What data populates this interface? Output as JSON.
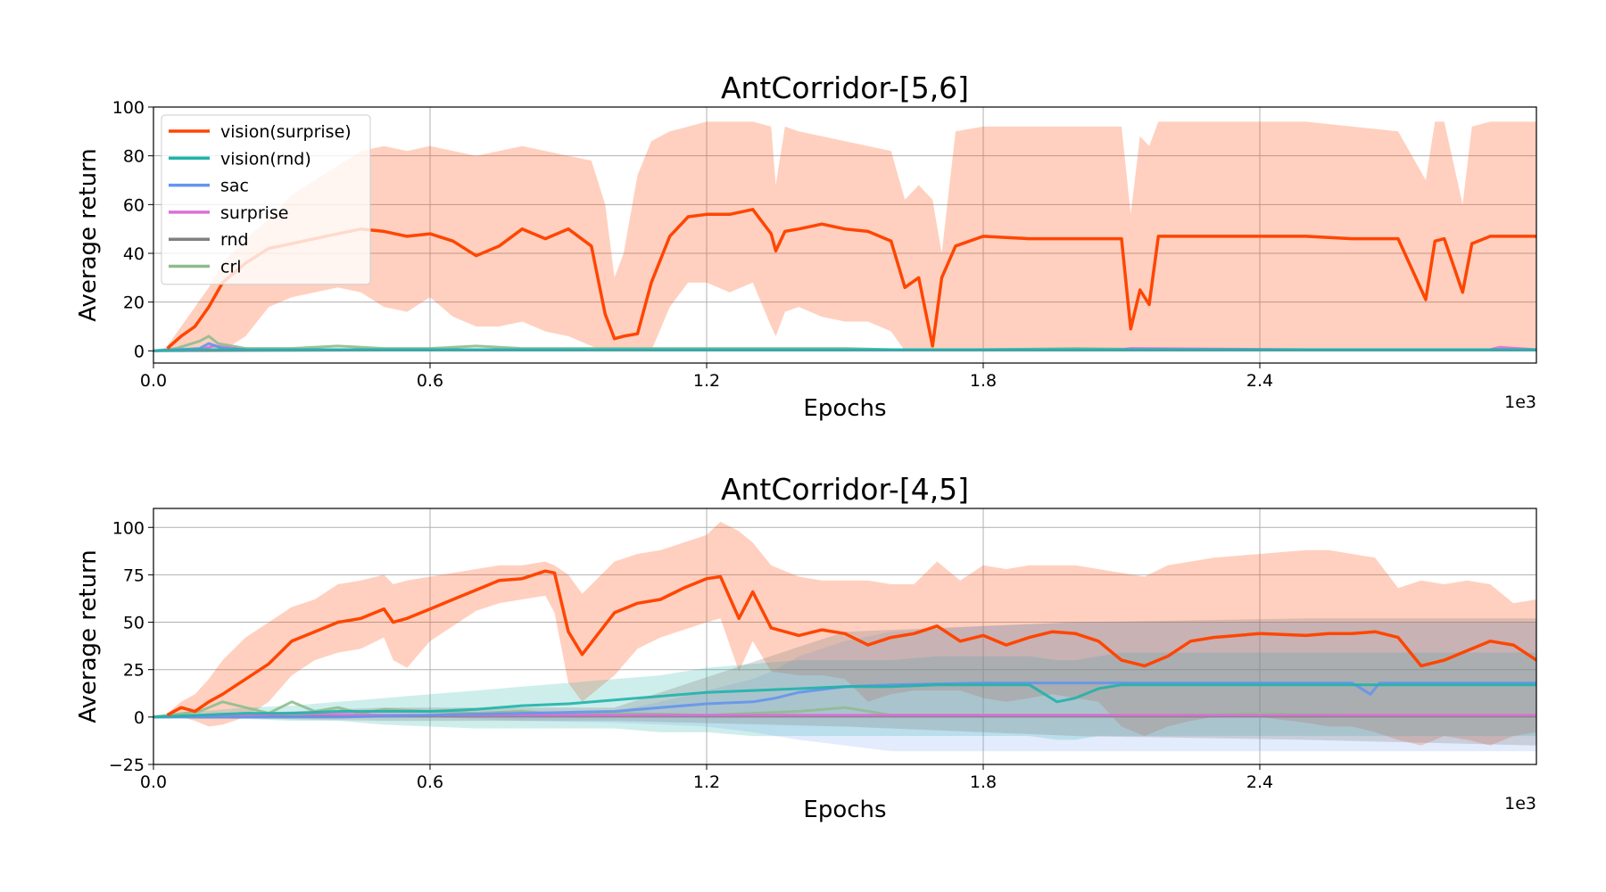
{
  "chart_data": [
    {
      "type": "line",
      "title": "AntCorridor-[5,6]",
      "xlabel": "Epochs",
      "ylabel": "Average return",
      "x_offset_text": "1e3",
      "xlim": [
        0,
        3.0
      ],
      "ylim": [
        -5,
        100
      ],
      "xticks": [
        0.0,
        0.6,
        1.2,
        1.8,
        2.4
      ],
      "xtick_labels": [
        "0.0",
        "0.6",
        "1.2",
        "1.8",
        "2.4"
      ],
      "yticks": [
        0,
        20,
        40,
        60,
        80,
        100
      ],
      "ytick_labels": [
        "0",
        "20",
        "40",
        "60",
        "80",
        "100"
      ],
      "grid": true,
      "legend": "upper-left",
      "series": [
        {
          "name": "vision(surprise)",
          "color": "#ff4500",
          "x": [
            0.03,
            0.06,
            0.09,
            0.12,
            0.15,
            0.2,
            0.25,
            0.3,
            0.35,
            0.4,
            0.45,
            0.5,
            0.55,
            0.6,
            0.65,
            0.7,
            0.75,
            0.8,
            0.85,
            0.9,
            0.95,
            0.98,
            1.0,
            1.02,
            1.05,
            1.08,
            1.12,
            1.16,
            1.2,
            1.25,
            1.3,
            1.34,
            1.35,
            1.37,
            1.4,
            1.45,
            1.5,
            1.55,
            1.6,
            1.63,
            1.66,
            1.69,
            1.71,
            1.74,
            1.8,
            1.9,
            2.0,
            2.1,
            2.12,
            2.14,
            2.16,
            2.18,
            2.2,
            2.3,
            2.4,
            2.5,
            2.6,
            2.7,
            2.76,
            2.78,
            2.8,
            2.84,
            2.86,
            2.9,
            3.0
          ],
          "y": [
            1,
            6,
            10,
            18,
            28,
            36,
            42,
            44,
            46,
            48,
            50,
            49,
            47,
            48,
            45,
            39,
            43,
            50,
            46,
            50,
            43,
            15,
            5,
            6,
            7,
            28,
            47,
            55,
            56,
            56,
            58,
            48,
            41,
            49,
            50,
            52,
            50,
            49,
            45,
            26,
            30,
            2,
            30,
            43,
            47,
            46,
            46,
            46,
            9,
            25,
            19,
            47,
            47,
            47,
            47,
            47,
            46,
            46,
            21,
            45,
            46,
            24,
            44,
            47,
            47
          ],
          "band_upper": [
            2,
            10,
            18,
            26,
            36,
            46,
            54,
            64,
            70,
            76,
            82,
            84,
            82,
            84,
            82,
            80,
            82,
            84,
            82,
            80,
            78,
            60,
            30,
            40,
            72,
            86,
            90,
            92,
            94,
            94,
            94,
            92,
            68,
            92,
            90,
            88,
            86,
            84,
            82,
            62,
            68,
            62,
            40,
            90,
            92,
            92,
            92,
            92,
            56,
            88,
            84,
            94,
            94,
            94,
            94,
            94,
            92,
            90,
            70,
            94,
            94,
            60,
            92,
            94,
            94
          ],
          "band_lower": [
            0,
            0,
            0,
            0,
            0,
            6,
            18,
            22,
            24,
            26,
            24,
            18,
            16,
            22,
            14,
            10,
            10,
            12,
            8,
            6,
            2,
            0,
            0,
            0,
            0,
            0,
            18,
            28,
            28,
            24,
            28,
            10,
            6,
            16,
            18,
            14,
            12,
            12,
            8,
            0,
            0,
            0,
            0,
            0,
            0,
            0,
            0,
            0,
            0,
            0,
            0,
            0,
            0,
            0,
            0,
            0,
            0,
            0,
            0,
            0,
            0,
            0,
            0,
            0,
            0
          ]
        },
        {
          "name": "vision(rnd)",
          "color": "#20b2aa",
          "x": [
            0.0,
            0.1,
            0.2,
            0.5,
            1.0,
            1.5,
            2.0,
            2.5,
            3.0
          ],
          "y": [
            0,
            0.5,
            0.5,
            0.5,
            0.5,
            0.5,
            0.5,
            0.5,
            0.5
          ]
        },
        {
          "name": "sac",
          "color": "#6495ed",
          "x": [
            0.0,
            0.1,
            0.12,
            0.15,
            0.2,
            0.5,
            1.0,
            1.5,
            2.0,
            2.5,
            3.0
          ],
          "y": [
            0,
            1,
            3,
            1,
            0.5,
            0.5,
            0.5,
            0.5,
            0.5,
            0.5,
            0.5
          ]
        },
        {
          "name": "surprise",
          "color": "#da70d6",
          "x": [
            0.0,
            0.1,
            0.13,
            0.2,
            0.5,
            1.0,
            1.5,
            2.0,
            2.1,
            2.12,
            2.5,
            2.9,
            2.92,
            3.0
          ],
          "y": [
            0,
            0.5,
            2,
            0.5,
            0.5,
            0.5,
            0.5,
            0.5,
            0.5,
            1,
            0.5,
            0.5,
            1.5,
            0.5
          ]
        },
        {
          "name": "rnd",
          "color": "#808080",
          "x": [
            0.0,
            0.5,
            1.0,
            1.5,
            2.0,
            2.5,
            3.0
          ],
          "y": [
            0,
            0.3,
            0.3,
            0.3,
            0.3,
            0.3,
            0.3
          ]
        },
        {
          "name": "crl",
          "color": "#8fbc8f",
          "x": [
            0.0,
            0.05,
            0.1,
            0.12,
            0.14,
            0.2,
            0.3,
            0.4,
            0.5,
            0.6,
            0.7,
            0.8,
            0.9,
            1.0,
            1.1,
            1.2,
            1.3,
            1.4,
            1.5,
            1.6,
            1.8,
            2.0,
            2.2,
            2.4,
            2.6,
            2.8,
            3.0
          ],
          "y": [
            0,
            1,
            4,
            6,
            3,
            1,
            1,
            2,
            1,
            1,
            2,
            1,
            1,
            1,
            1,
            1,
            1,
            1,
            1,
            0.5,
            0.5,
            1,
            0.5,
            0.5,
            0.5,
            0.5,
            0.5
          ]
        }
      ]
    },
    {
      "type": "line",
      "title": "AntCorridor-[4,5]",
      "xlabel": "Epochs",
      "ylabel": "Average return",
      "x_offset_text": "1e3",
      "xlim": [
        0,
        3.0
      ],
      "ylim": [
        -25,
        110
      ],
      "xticks": [
        0.0,
        0.6,
        1.2,
        1.8,
        2.4
      ],
      "xtick_labels": [
        "0.0",
        "0.6",
        "1.2",
        "1.8",
        "2.4"
      ],
      "yticks": [
        -25,
        0,
        25,
        50,
        75,
        100
      ],
      "ytick_labels": [
        "−25",
        "0",
        "25",
        "50",
        "75",
        "100"
      ],
      "grid": true,
      "legend": "none",
      "series": [
        {
          "name": "vision(surprise)",
          "color": "#ff4500",
          "x": [
            0.03,
            0.06,
            0.09,
            0.12,
            0.15,
            0.2,
            0.25,
            0.3,
            0.35,
            0.4,
            0.45,
            0.5,
            0.52,
            0.55,
            0.6,
            0.65,
            0.7,
            0.75,
            0.8,
            0.85,
            0.87,
            0.9,
            0.93,
            1.0,
            1.05,
            1.1,
            1.15,
            1.2,
            1.23,
            1.27,
            1.3,
            1.34,
            1.4,
            1.45,
            1.5,
            1.55,
            1.6,
            1.65,
            1.7,
            1.75,
            1.8,
            1.85,
            1.9,
            1.95,
            2.0,
            2.05,
            2.1,
            2.15,
            2.2,
            2.25,
            2.3,
            2.4,
            2.5,
            2.55,
            2.6,
            2.65,
            2.7,
            2.75,
            2.8,
            2.85,
            2.9,
            2.95,
            3.0
          ],
          "y": [
            1,
            5,
            3,
            8,
            12,
            20,
            28,
            40,
            45,
            50,
            52,
            57,
            50,
            52,
            57,
            62,
            67,
            72,
            73,
            77,
            76,
            45,
            33,
            55,
            60,
            62,
            68,
            73,
            74,
            52,
            66,
            47,
            43,
            46,
            44,
            38,
            42,
            44,
            48,
            40,
            43,
            38,
            42,
            45,
            44,
            40,
            30,
            27,
            32,
            40,
            42,
            44,
            43,
            44,
            44,
            45,
            42,
            27,
            30,
            35,
            40,
            38,
            30
          ],
          "band_upper": [
            2,
            8,
            12,
            20,
            30,
            42,
            50,
            58,
            62,
            70,
            72,
            75,
            70,
            72,
            74,
            76,
            78,
            80,
            80,
            82,
            80,
            75,
            65,
            82,
            86,
            88,
            92,
            96,
            103,
            98,
            92,
            80,
            74,
            72,
            72,
            72,
            70,
            70,
            82,
            72,
            80,
            78,
            80,
            80,
            80,
            78,
            76,
            74,
            80,
            82,
            84,
            86,
            88,
            88,
            86,
            84,
            68,
            72,
            70,
            72,
            70,
            60,
            62
          ],
          "band_lower": [
            0,
            0,
            -2,
            -5,
            -4,
            0,
            8,
            22,
            30,
            34,
            36,
            42,
            30,
            26,
            40,
            48,
            56,
            60,
            62,
            64,
            55,
            18,
            8,
            22,
            36,
            42,
            46,
            50,
            52,
            24,
            40,
            24,
            22,
            22,
            20,
            8,
            12,
            14,
            14,
            14,
            10,
            8,
            10,
            12,
            10,
            8,
            -5,
            -10,
            -5,
            -2,
            0,
            0,
            -3,
            -5,
            -5,
            -8,
            -12,
            -15,
            -10,
            -12,
            -15,
            -10,
            -8
          ]
        },
        {
          "name": "vision(rnd)",
          "color": "#20b2aa",
          "x": [
            0.0,
            0.1,
            0.2,
            0.3,
            0.4,
            0.5,
            0.6,
            0.7,
            0.8,
            0.9,
            1.0,
            1.1,
            1.2,
            1.3,
            1.4,
            1.5,
            1.6,
            1.7,
            1.8,
            1.9,
            1.96,
            2.0,
            2.05,
            2.1,
            2.2,
            2.3,
            2.4,
            2.5,
            2.6,
            2.7,
            2.8,
            2.9,
            3.0
          ],
          "y": [
            0,
            1,
            2,
            2,
            3,
            3,
            3,
            4,
            6,
            7,
            9,
            11,
            13,
            14,
            15,
            16,
            16,
            17,
            17,
            17,
            8,
            10,
            15,
            17,
            17,
            17,
            17,
            17,
            17,
            17,
            17,
            17,
            17
          ],
          "band_upper": [
            1,
            3,
            5,
            6,
            8,
            10,
            12,
            14,
            16,
            18,
            20,
            22,
            26,
            28,
            30,
            30,
            30,
            32,
            32,
            32,
            30,
            30,
            32,
            34,
            34,
            34,
            34,
            34,
            34,
            34,
            34,
            34,
            34
          ],
          "band_lower": [
            0,
            -1,
            -1,
            -2,
            -2,
            -4,
            -5,
            -6,
            -6,
            -6,
            -6,
            -8,
            -8,
            -10,
            -10,
            -10,
            -10,
            -10,
            -10,
            -10,
            -12,
            -12,
            -10,
            -10,
            -10,
            -10,
            -10,
            -10,
            -10,
            -10,
            -10,
            -10,
            -10
          ]
        },
        {
          "name": "sac",
          "color": "#6495ed",
          "x": [
            0.0,
            0.2,
            0.4,
            0.6,
            0.8,
            1.0,
            1.1,
            1.2,
            1.3,
            1.35,
            1.4,
            1.5,
            1.6,
            1.8,
            2.0,
            2.2,
            2.4,
            2.6,
            2.64,
            2.66,
            2.7,
            3.0
          ],
          "y": [
            0,
            0,
            0,
            1,
            2,
            3,
            5,
            7,
            8,
            10,
            13,
            16,
            17,
            18,
            18,
            18,
            18,
            18,
            12,
            18,
            18,
            18
          ],
          "band_upper": [
            0,
            0,
            0,
            1,
            2,
            3,
            8,
            14,
            20,
            25,
            32,
            40,
            45,
            48,
            50,
            50,
            50,
            50,
            50,
            50,
            50,
            50
          ],
          "band_lower": [
            0,
            0,
            0,
            0,
            -2,
            -3,
            -4,
            -5,
            -8,
            -10,
            -12,
            -15,
            -18,
            -18,
            -18,
            -18,
            -18,
            -18,
            -18,
            -18,
            -18,
            -18
          ]
        },
        {
          "name": "surprise",
          "color": "#da70d6",
          "x": [
            0.0,
            0.2,
            0.3,
            0.5,
            1.0,
            1.5,
            2.0,
            2.5,
            3.0
          ],
          "y": [
            0,
            1,
            2,
            1,
            1,
            1,
            1,
            1,
            1
          ]
        },
        {
          "name": "rnd",
          "color": "#808080",
          "x": [
            0.0,
            0.5,
            1.0,
            1.5,
            2.0,
            2.5,
            3.0
          ],
          "y": [
            0,
            0.5,
            0.5,
            0.5,
            0.5,
            0.5,
            0.5
          ],
          "band_upper": [
            0,
            5,
            5,
            45,
            50,
            52,
            52
          ],
          "band_lower": [
            0,
            -2,
            -2,
            -5,
            -10,
            -12,
            -15
          ]
        },
        {
          "name": "crl",
          "color": "#8fbc8f",
          "x": [
            0.0,
            0.1,
            0.15,
            0.2,
            0.25,
            0.3,
            0.35,
            0.4,
            0.45,
            0.5,
            0.6,
            0.7,
            0.8,
            0.9,
            1.0,
            1.2,
            1.4,
            1.5,
            1.6,
            1.8,
            2.0,
            2.2,
            2.4,
            2.6,
            2.8,
            3.0
          ],
          "y": [
            0,
            3,
            8,
            5,
            2,
            8,
            3,
            5,
            2,
            4,
            3,
            2,
            3,
            1,
            2,
            1,
            3,
            5,
            1,
            1,
            1,
            1,
            2,
            1,
            1,
            1
          ]
        }
      ]
    }
  ]
}
